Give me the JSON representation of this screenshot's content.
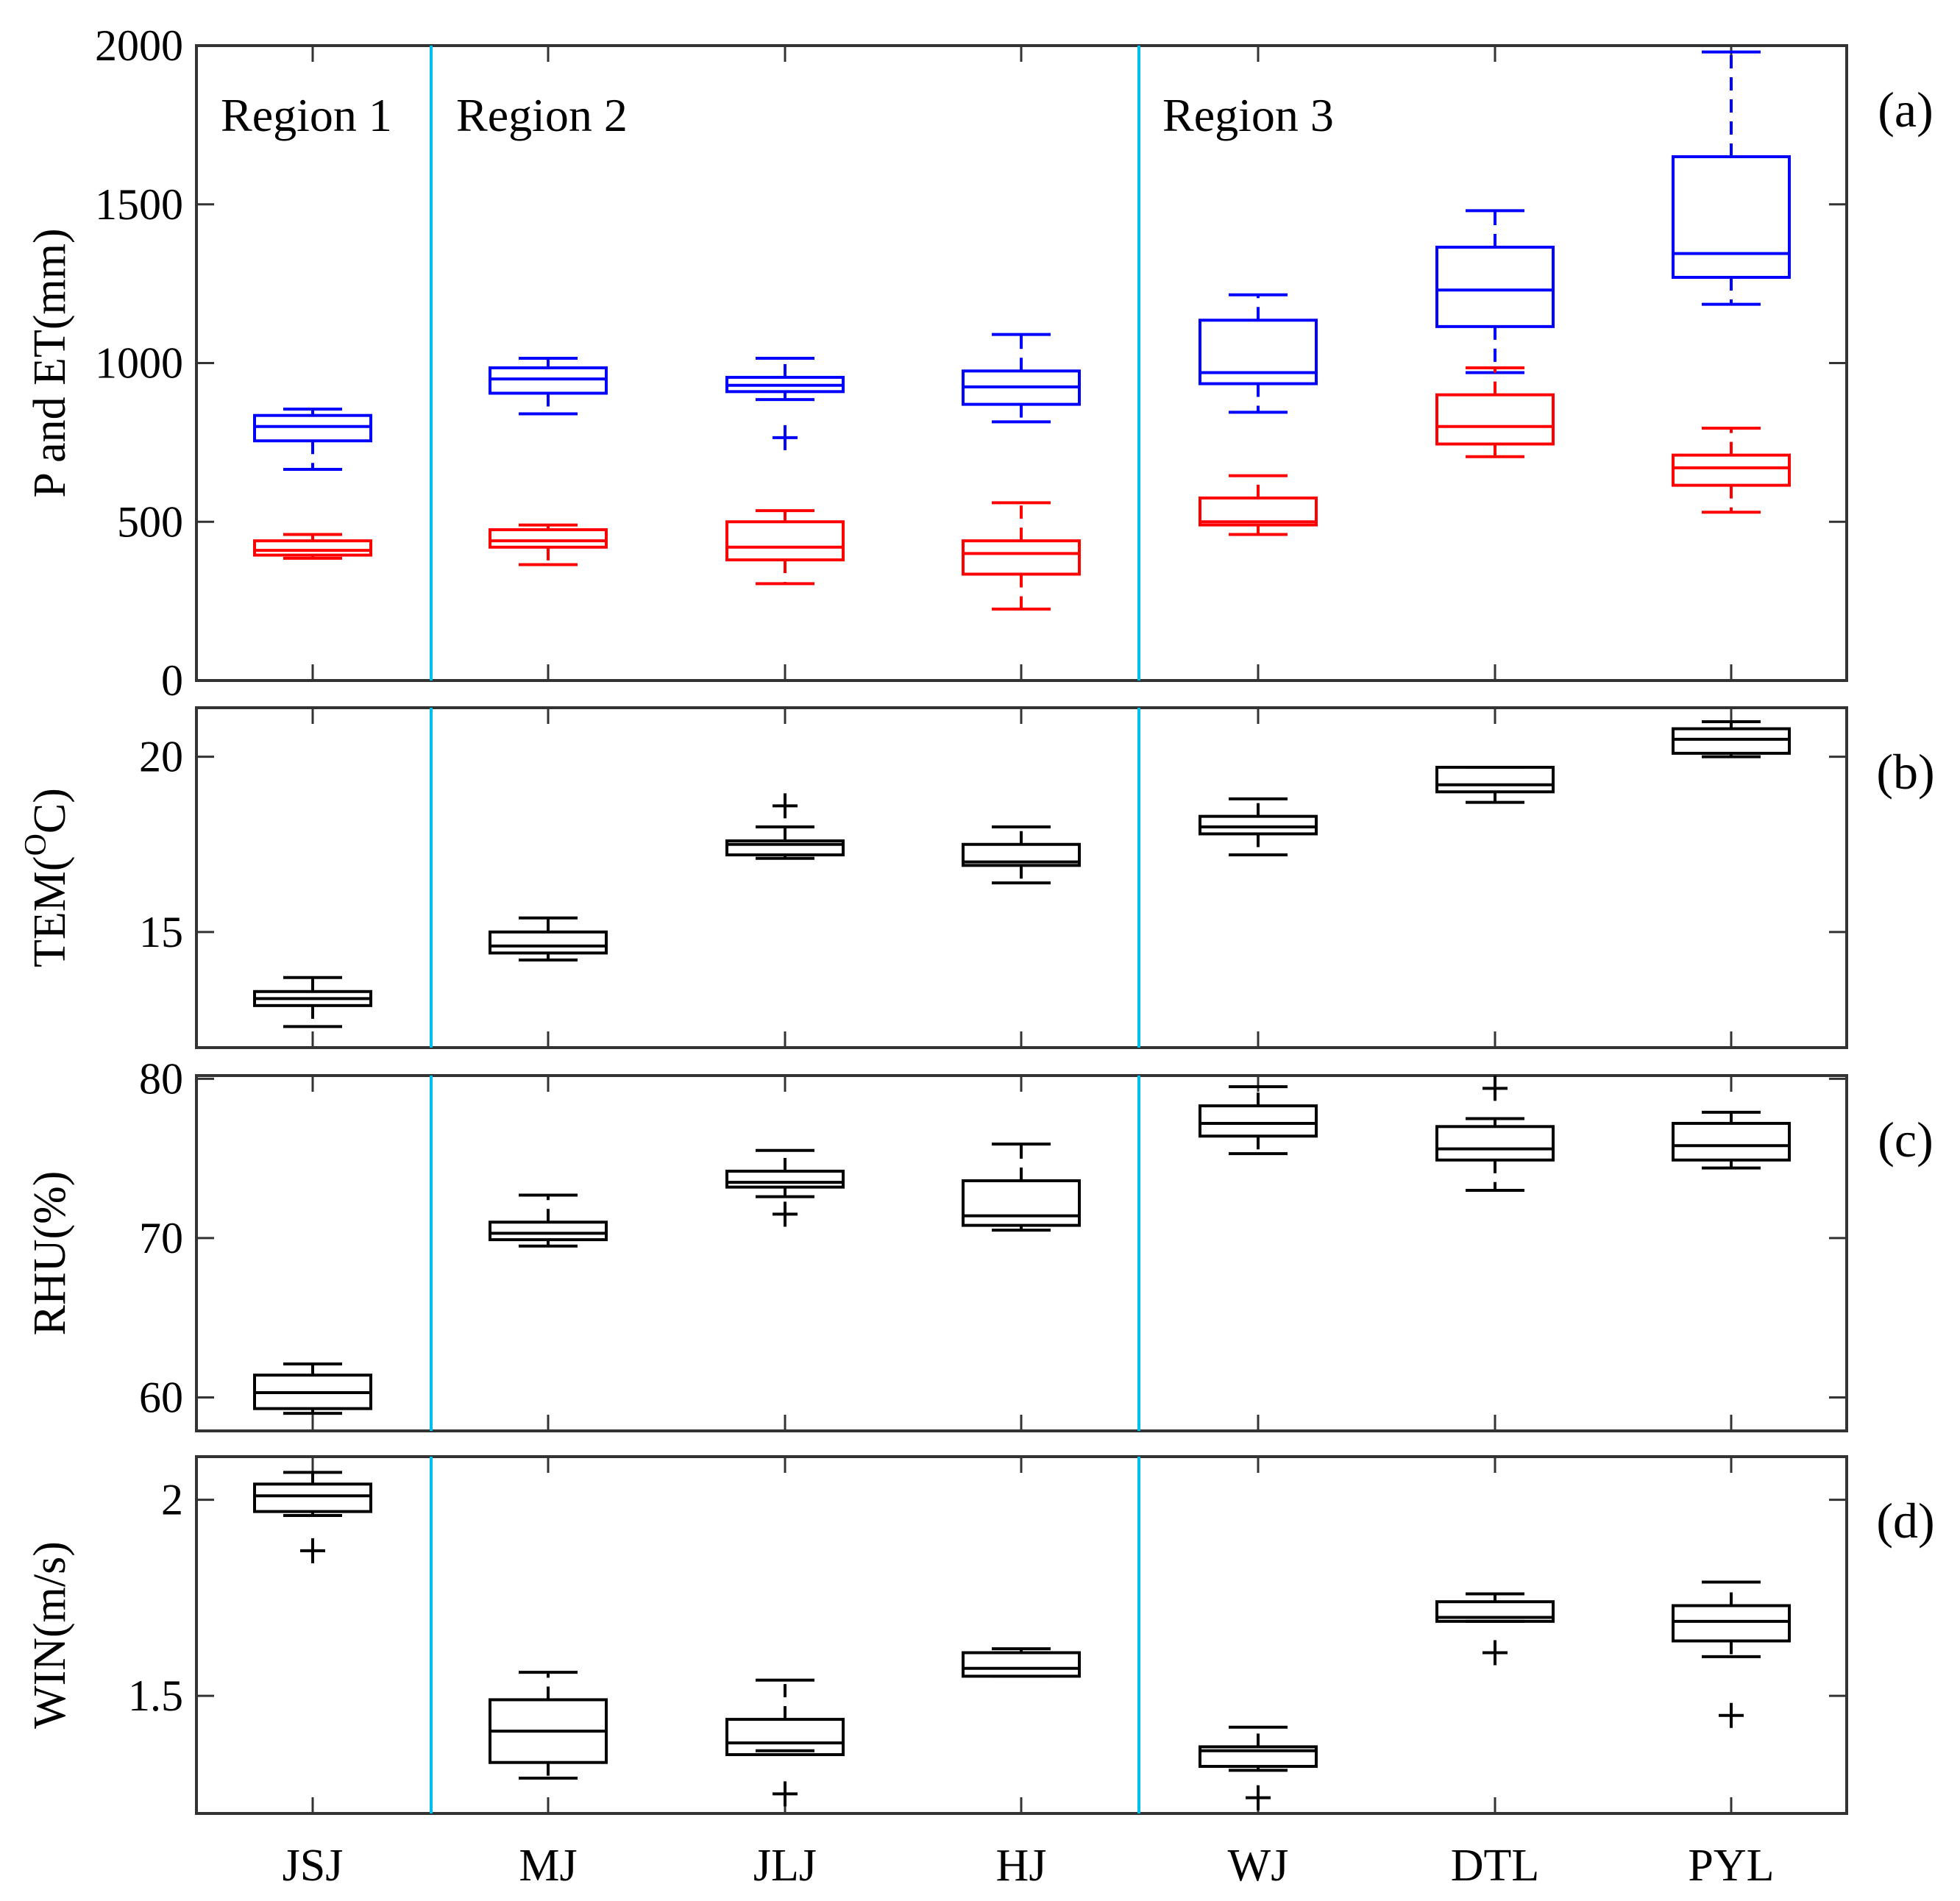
{
  "chart_data": {
    "type": "boxplot",
    "categories": [
      "JSJ",
      "MJ",
      "JLJ",
      "HJ",
      "WJ",
      "DTL",
      "PYL"
    ],
    "regions": [
      {
        "label": "Region 1",
        "first": 0,
        "last": 0
      },
      {
        "label": "Region 2",
        "first": 1,
        "last": 3
      },
      {
        "label": "Region 3",
        "first": 4,
        "last": 6
      }
    ],
    "colors": {
      "P": "#0000ff",
      "ET": "#ff0000",
      "met": "#000000",
      "divider": "#00bfe8",
      "axis": "#333333"
    },
    "panels": [
      {
        "tag": "(a)",
        "ylabel": "P and ET(mm)",
        "ylim": [
          0,
          2000
        ],
        "yticks": [
          0,
          500,
          1000,
          1500,
          2000
        ],
        "series": [
          {
            "name": "P",
            "color": "#0000ff",
            "boxes": [
              {
                "lw": 665,
                "q1": 755,
                "med": 800,
                "q3": 835,
                "uw": 855,
                "outliers": []
              },
              {
                "lw": 840,
                "q1": 905,
                "med": 950,
                "q3": 985,
                "uw": 1015,
                "outliers": []
              },
              {
                "lw": 885,
                "q1": 910,
                "med": 930,
                "q3": 955,
                "uw": 1015,
                "outliers": [
                  765
                ]
              },
              {
                "lw": 815,
                "q1": 870,
                "med": 925,
                "q3": 975,
                "uw": 1090,
                "outliers": []
              },
              {
                "lw": 845,
                "q1": 935,
                "med": 970,
                "q3": 1135,
                "uw": 1215,
                "outliers": []
              },
              {
                "lw": 970,
                "q1": 1115,
                "med": 1230,
                "q3": 1365,
                "uw": 1480,
                "outliers": []
              },
              {
                "lw": 1185,
                "q1": 1270,
                "med": 1345,
                "q3": 1650,
                "uw": 1980,
                "outliers": []
              }
            ]
          },
          {
            "name": "ET",
            "color": "#ff0000",
            "boxes": [
              {
                "lw": 385,
                "q1": 395,
                "med": 410,
                "q3": 440,
                "uw": 460,
                "outliers": []
              },
              {
                "lw": 365,
                "q1": 420,
                "med": 440,
                "q3": 475,
                "uw": 490,
                "outliers": []
              },
              {
                "lw": 305,
                "q1": 380,
                "med": 420,
                "q3": 500,
                "uw": 535,
                "outliers": []
              },
              {
                "lw": 225,
                "q1": 335,
                "med": 400,
                "q3": 440,
                "uw": 560,
                "outliers": []
              },
              {
                "lw": 460,
                "q1": 490,
                "med": 500,
                "q3": 575,
                "uw": 645,
                "outliers": []
              },
              {
                "lw": 705,
                "q1": 745,
                "med": 800,
                "q3": 900,
                "uw": 985,
                "outliers": []
              },
              {
                "lw": 530,
                "q1": 615,
                "med": 670,
                "q3": 710,
                "uw": 795,
                "outliers": []
              }
            ]
          }
        ]
      },
      {
        "tag": "(b)",
        "ylabel_main": "TEM(",
        "ylabel_sup": "O",
        "ylabel_tail": "C)",
        "ylim": [
          11.7,
          21.4
        ],
        "yticks": [
          15,
          20
        ],
        "series": [
          {
            "name": "TEM",
            "color": "#000000",
            "boxes": [
              {
                "lw": 12.3,
                "q1": 12.9,
                "med": 13.1,
                "q3": 13.3,
                "uw": 13.7,
                "outliers": []
              },
              {
                "lw": 14.2,
                "q1": 14.4,
                "med": 14.6,
                "q3": 15.0,
                "uw": 15.4,
                "outliers": []
              },
              {
                "lw": 17.1,
                "q1": 17.2,
                "med": 17.5,
                "q3": 17.6,
                "uw": 18.0,
                "outliers": [
                  18.6
                ]
              },
              {
                "lw": 16.4,
                "q1": 16.9,
                "med": 17.0,
                "q3": 17.5,
                "uw": 18.0,
                "outliers": []
              },
              {
                "lw": 17.2,
                "q1": 17.8,
                "med": 18.0,
                "q3": 18.3,
                "uw": 18.8,
                "outliers": []
              },
              {
                "lw": 18.7,
                "q1": 19.0,
                "med": 19.2,
                "q3": 19.7,
                "uw": 19.7,
                "outliers": []
              },
              {
                "lw": 20.0,
                "q1": 20.1,
                "med": 20.5,
                "q3": 20.8,
                "uw": 21.0,
                "outliers": []
              }
            ]
          }
        ]
      },
      {
        "tag": "(c)",
        "ylabel": "RHU(%)",
        "ylim": [
          57.9,
          80.2
        ],
        "yticks": [
          60,
          70,
          80
        ],
        "series": [
          {
            "name": "RHU",
            "color": "#000000",
            "boxes": [
              {
                "lw": 59.0,
                "q1": 59.3,
                "med": 60.3,
                "q3": 61.4,
                "uw": 62.1,
                "outliers": []
              },
              {
                "lw": 69.5,
                "q1": 69.9,
                "med": 70.3,
                "q3": 71.0,
                "uw": 72.7,
                "outliers": []
              },
              {
                "lw": 72.6,
                "q1": 73.2,
                "med": 73.5,
                "q3": 74.2,
                "uw": 75.5,
                "outliers": [
                  71.5
                ]
              },
              {
                "lw": 70.5,
                "q1": 70.8,
                "med": 71.4,
                "q3": 73.6,
                "uw": 75.9,
                "outliers": []
              },
              {
                "lw": 75.3,
                "q1": 76.4,
                "med": 77.2,
                "q3": 78.3,
                "uw": 79.5,
                "outliers": []
              },
              {
                "lw": 73.0,
                "q1": 74.9,
                "med": 75.6,
                "q3": 77.0,
                "uw": 77.5,
                "outliers": [
                  79.4
                ]
              },
              {
                "lw": 74.4,
                "q1": 74.9,
                "med": 75.8,
                "q3": 77.2,
                "uw": 77.9,
                "outliers": []
              }
            ]
          }
        ]
      },
      {
        "tag": "(d)",
        "ylabel": "WIN(m/s)",
        "ylim": [
          1.2,
          2.11
        ],
        "yticks": [
          1.5,
          2
        ],
        "series": [
          {
            "name": "WIN",
            "color": "#000000",
            "boxes": [
              {
                "lw": 1.96,
                "q1": 1.97,
                "med": 2.01,
                "q3": 2.04,
                "uw": 2.07,
                "outliers": [
                  1.87
                ]
              },
              {
                "lw": 1.29,
                "q1": 1.33,
                "med": 1.41,
                "q3": 1.49,
                "uw": 1.56,
                "outliers": []
              },
              {
                "lw": 1.36,
                "q1": 1.35,
                "med": 1.38,
                "q3": 1.44,
                "uw": 1.54,
                "outliers": [
                  1.25
                ]
              },
              {
                "lw": 1.55,
                "q1": 1.55,
                "med": 1.57,
                "q3": 1.61,
                "uw": 1.62,
                "outliers": []
              },
              {
                "lw": 1.31,
                "q1": 1.32,
                "med": 1.36,
                "q3": 1.37,
                "uw": 1.42,
                "outliers": [
                  1.24
                ]
              },
              {
                "lw": 1.69,
                "q1": 1.69,
                "med": 1.7,
                "q3": 1.74,
                "uw": 1.76,
                "outliers": [
                  1.61
                ]
              },
              {
                "lw": 1.6,
                "q1": 1.64,
                "med": 1.69,
                "q3": 1.73,
                "uw": 1.79,
                "outliers": [
                  1.45
                ]
              }
            ]
          }
        ]
      }
    ]
  }
}
